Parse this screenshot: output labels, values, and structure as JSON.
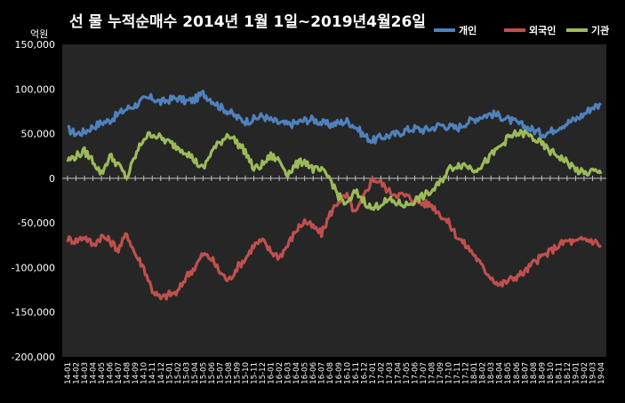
{
  "chart_data": {
    "type": "line",
    "title": "선 물 누적순매수 2014년 1월 1일~2019년4월26일",
    "ylabel": "억원",
    "xlabel": "",
    "ylim": [
      -200000,
      150000
    ],
    "yticks": [
      150000,
      100000,
      50000,
      0,
      -50000,
      -100000,
      -150000,
      -200000
    ],
    "ytick_labels": [
      "150,000",
      "100,000",
      "50,000",
      "0",
      "-50,000",
      "-100,000",
      "-150,000",
      "-200,000"
    ],
    "categories": [
      "14-01",
      "14-02",
      "14-03",
      "14-04",
      "14-05",
      "14-06",
      "14-07",
      "14-08",
      "14-09",
      "14-10",
      "14-11",
      "14-12",
      "15-01",
      "15-02",
      "15-03",
      "15-04",
      "15-05",
      "15-06",
      "15-07",
      "15-08",
      "15-09",
      "15-10",
      "15-11",
      "15-12",
      "16-01",
      "16-02",
      "16-03",
      "16-04",
      "16-05",
      "16-06",
      "16-07",
      "16-08",
      "16-09",
      "16-10",
      "16-11",
      "16-12",
      "17-01",
      "17-02",
      "17-03",
      "17-04",
      "17-05",
      "17-06",
      "17-07",
      "17-08",
      "17-09",
      "17-10",
      "17-11",
      "17-12",
      "18-01",
      "18-02",
      "18-03",
      "18-04",
      "18-05",
      "18-06",
      "18-07",
      "18-08",
      "18-09",
      "18-10",
      "18-11",
      "18-12",
      "19-01",
      "19-02",
      "19-03",
      "19-04"
    ],
    "legend_position": "top-right",
    "grid": false,
    "series": [
      {
        "name": "개인",
        "color": "#4f81bd",
        "values": [
          55000,
          50000,
          52000,
          58000,
          62000,
          65000,
          72000,
          78000,
          82000,
          88000,
          90000,
          85000,
          88000,
          90000,
          86000,
          88000,
          95000,
          88000,
          80000,
          75000,
          68000,
          64000,
          66000,
          70000,
          65000,
          62000,
          60000,
          62000,
          65000,
          66000,
          62000,
          60000,
          62000,
          64000,
          58000,
          48000,
          42000,
          46000,
          48000,
          50000,
          54000,
          56000,
          54000,
          56000,
          60000,
          58000,
          56000,
          62000,
          66000,
          70000,
          72000,
          70000,
          66000,
          62000,
          58000,
          54000,
          50000,
          52000,
          58000,
          62000,
          66000,
          72000,
          80000,
          82000
        ]
      },
      {
        "name": "외국인",
        "color": "#c0504d",
        "values": [
          -68000,
          -70000,
          -65000,
          -75000,
          -65000,
          -70000,
          -80000,
          -62000,
          -85000,
          -100000,
          -125000,
          -135000,
          -130000,
          -128000,
          -110000,
          -100000,
          -85000,
          -90000,
          -105000,
          -115000,
          -100000,
          -90000,
          -75000,
          -70000,
          -82000,
          -88000,
          -75000,
          -58000,
          -48000,
          -55000,
          -62000,
          -40000,
          -25000,
          -20000,
          -40000,
          -20000,
          0,
          -5000,
          -15000,
          -18000,
          -20000,
          -25000,
          -28000,
          -30000,
          -40000,
          -50000,
          -65000,
          -75000,
          -85000,
          -100000,
          -110000,
          -120000,
          -115000,
          -110000,
          -105000,
          -95000,
          -88000,
          -82000,
          -75000,
          -70000,
          -72000,
          -68000,
          -70000,
          -75000
        ]
      },
      {
        "name": "기관",
        "color": "#9bbb59",
        "values": [
          20000,
          25000,
          30000,
          20000,
          5000,
          25000,
          15000,
          0,
          25000,
          45000,
          50000,
          45000,
          40000,
          35000,
          30000,
          20000,
          10000,
          30000,
          40000,
          50000,
          40000,
          30000,
          10000,
          15000,
          25000,
          20000,
          5000,
          15000,
          20000,
          10000,
          8000,
          0,
          -20000,
          -30000,
          -15000,
          -25000,
          -35000,
          -28000,
          -25000,
          -28000,
          -30000,
          -25000,
          -20000,
          -15000,
          -5000,
          10000,
          15000,
          15000,
          10000,
          15000,
          25000,
          35000,
          45000,
          50000,
          50000,
          45000,
          38000,
          30000,
          25000,
          18000,
          10000,
          5000,
          8000,
          5000
        ]
      }
    ]
  }
}
